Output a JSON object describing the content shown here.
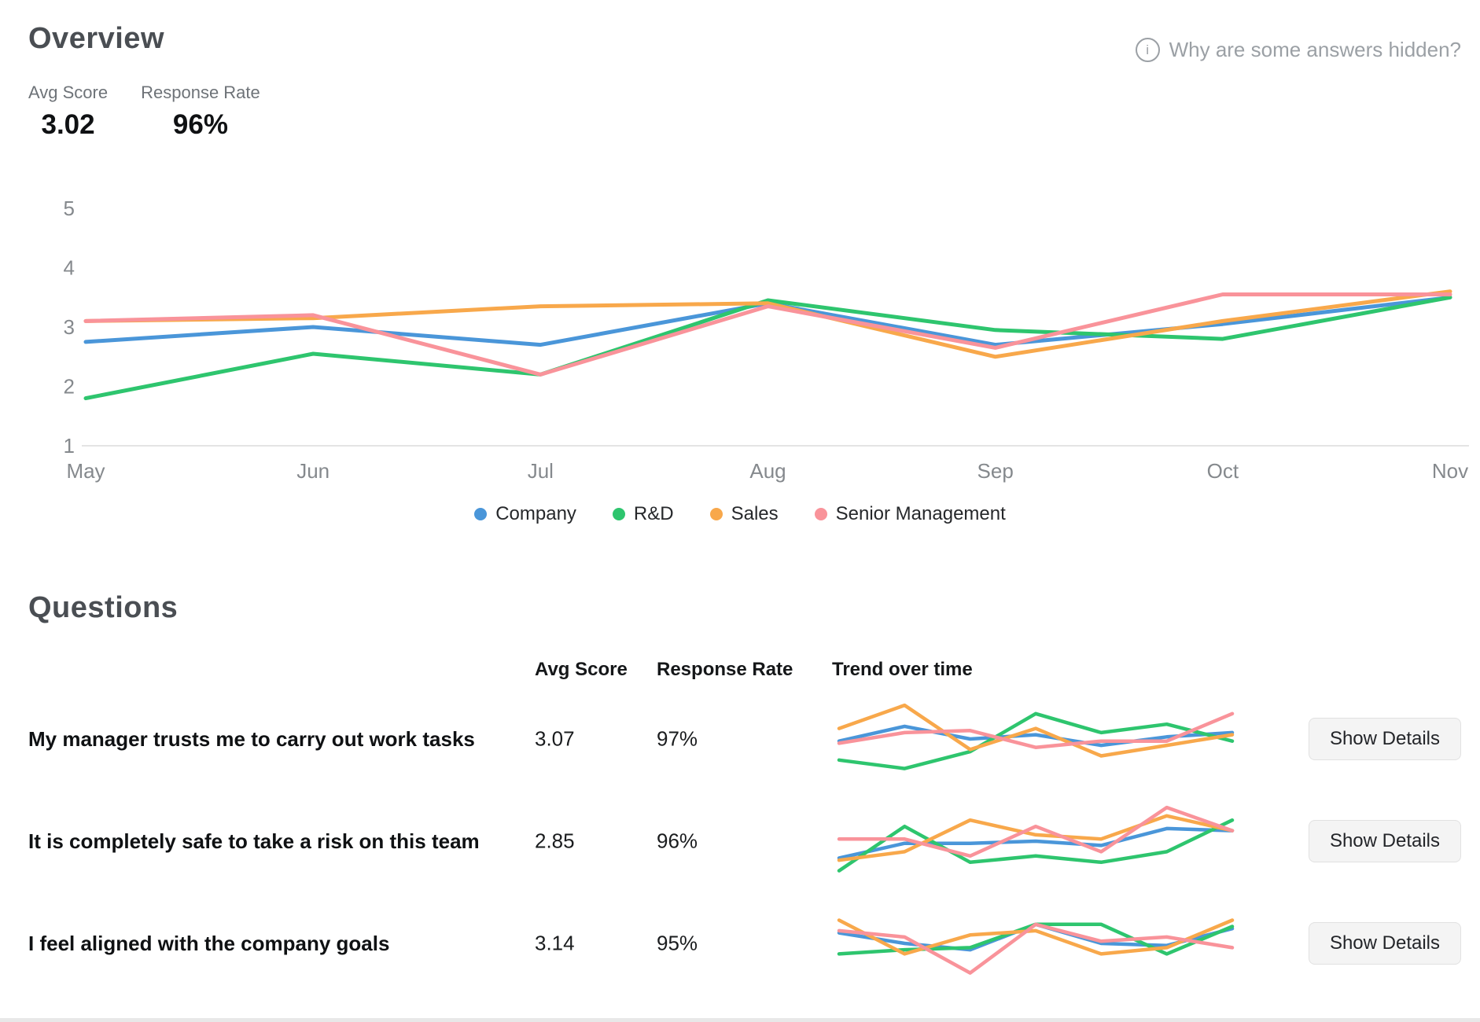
{
  "header": {
    "title": "Overview",
    "metrics": [
      {
        "label": "Avg Score",
        "value": "3.02"
      },
      {
        "label": "Response Rate",
        "value": "96%"
      }
    ],
    "help_link": "Why are some answers hidden?",
    "info_icon": "info-icon"
  },
  "colors": {
    "company": "#4A96D9",
    "rnd": "#2EC56E",
    "sales": "#F8A84B",
    "senior_management": "#F9939A",
    "axis_text": "#85898d",
    "axis_line": "#e4e4e4"
  },
  "chart_data": [
    {
      "type": "line",
      "title": "Overview trend over time",
      "x": [
        "May",
        "Jun",
        "Jul",
        "Aug",
        "Sep",
        "Oct",
        "Nov"
      ],
      "ylim": [
        1,
        5
      ],
      "yticks": [
        1,
        2,
        3,
        4,
        5
      ],
      "grid": false,
      "legend_position": "bottom",
      "series": [
        {
          "name": "Company",
          "key": "company",
          "color": "#4A96D9",
          "values": [
            2.75,
            3.0,
            2.7,
            3.4,
            2.7,
            3.05,
            3.5
          ]
        },
        {
          "name": "R&D",
          "key": "rnd",
          "color": "#2EC56E",
          "values": [
            1.8,
            2.55,
            2.2,
            3.45,
            2.95,
            2.8,
            3.5
          ]
        },
        {
          "name": "Sales",
          "key": "sales",
          "color": "#F8A84B",
          "values": [
            3.1,
            3.15,
            3.35,
            3.4,
            2.5,
            3.1,
            3.6
          ]
        },
        {
          "name": "Senior Management",
          "key": "senior-management",
          "color": "#F9939A",
          "values": [
            3.1,
            3.2,
            2.2,
            3.35,
            2.65,
            3.55,
            3.55
          ]
        }
      ]
    },
    {
      "type": "line",
      "title": "Trend: My manager trusts me to carry out work tasks",
      "x": [
        "May",
        "Jun",
        "Jul",
        "Aug",
        "Sep",
        "Oct",
        "Nov"
      ],
      "ylim": [
        2,
        4
      ],
      "grid": false,
      "series": [
        {
          "name": "Company",
          "key": "company",
          "color": "#4A96D9",
          "values": [
            2.9,
            3.25,
            2.95,
            3.05,
            2.8,
            3.0,
            3.1
          ]
        },
        {
          "name": "R&D",
          "key": "rnd",
          "color": "#2EC56E",
          "values": [
            2.45,
            2.25,
            2.65,
            3.55,
            3.1,
            3.3,
            2.9
          ]
        },
        {
          "name": "Sales",
          "key": "sales",
          "color": "#F8A84B",
          "values": [
            3.2,
            3.75,
            2.7,
            3.2,
            2.55,
            2.8,
            3.05
          ]
        },
        {
          "name": "Senior Management",
          "key": "senior-management",
          "color": "#F9939A",
          "values": [
            2.85,
            3.1,
            3.15,
            2.75,
            2.9,
            2.9,
            3.55
          ]
        }
      ]
    },
    {
      "type": "line",
      "title": "Trend: It is completely safe to take a risk on this team",
      "x": [
        "May",
        "Jun",
        "Jul",
        "Aug",
        "Sep",
        "Oct",
        "Nov"
      ],
      "ylim": [
        2,
        4
      ],
      "grid": false,
      "series": [
        {
          "name": "Company",
          "key": "company",
          "color": "#4A96D9",
          "values": [
            2.55,
            2.9,
            2.9,
            2.95,
            2.85,
            3.25,
            3.2
          ]
        },
        {
          "name": "R&D",
          "key": "rnd",
          "color": "#2EC56E",
          "values": [
            2.25,
            3.3,
            2.45,
            2.6,
            2.45,
            2.7,
            3.45
          ]
        },
        {
          "name": "Sales",
          "key": "sales",
          "color": "#F8A84B",
          "values": [
            2.5,
            2.7,
            3.45,
            3.1,
            3.0,
            3.55,
            3.2
          ]
        },
        {
          "name": "Senior Management",
          "key": "senior-management",
          "color": "#F9939A",
          "values": [
            3.0,
            3.0,
            2.6,
            3.3,
            2.7,
            3.75,
            3.2
          ]
        }
      ]
    },
    {
      "type": "line",
      "title": "Trend: I feel aligned with the company goals",
      "x": [
        "May",
        "Jun",
        "Jul",
        "Aug",
        "Sep",
        "Oct",
        "Nov"
      ],
      "ylim": [
        2,
        4
      ],
      "grid": false,
      "series": [
        {
          "name": "Company",
          "key": "company",
          "color": "#4A96D9",
          "values": [
            3.2,
            2.95,
            2.8,
            3.4,
            2.95,
            2.9,
            3.3
          ]
        },
        {
          "name": "R&D",
          "key": "rnd",
          "color": "#2EC56E",
          "values": [
            2.7,
            2.8,
            2.85,
            3.4,
            3.4,
            2.7,
            3.35
          ]
        },
        {
          "name": "Sales",
          "key": "sales",
          "color": "#F8A84B",
          "values": [
            3.5,
            2.7,
            3.15,
            3.25,
            2.7,
            2.85,
            3.5
          ]
        },
        {
          "name": "Senior Management",
          "key": "senior-management",
          "color": "#F9939A",
          "values": [
            3.25,
            3.1,
            2.25,
            3.4,
            3.0,
            3.1,
            2.85
          ]
        }
      ]
    }
  ],
  "questions": {
    "title": "Questions",
    "columns": [
      "Avg Score",
      "Response Rate",
      "Trend over time"
    ],
    "show_details_label": "Show Details",
    "rows": [
      {
        "question": "My manager trusts me to carry out work tasks",
        "avg_score": "3.07",
        "response_rate": "97%"
      },
      {
        "question": "It is completely safe to take a risk on this team",
        "avg_score": "2.85",
        "response_rate": "96%"
      },
      {
        "question": "I feel aligned with the company goals",
        "avg_score": "3.14",
        "response_rate": "95%"
      }
    ]
  }
}
